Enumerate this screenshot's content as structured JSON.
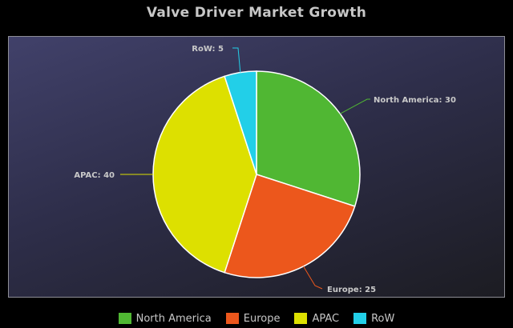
{
  "chart_data": {
    "type": "pie",
    "title": "Valve Driver Market Growth",
    "categories": [
      "North America",
      "Europe",
      "APAC",
      "RoW"
    ],
    "values": [
      30,
      25,
      40,
      5
    ],
    "colors": [
      "#50b733",
      "#ec571c",
      "#dde000",
      "#22cfe8"
    ],
    "data_labels": [
      "North America: 30",
      "Europe: 25",
      "APAC: 40",
      "RoW: 5"
    ],
    "legend_position": "bottom"
  }
}
